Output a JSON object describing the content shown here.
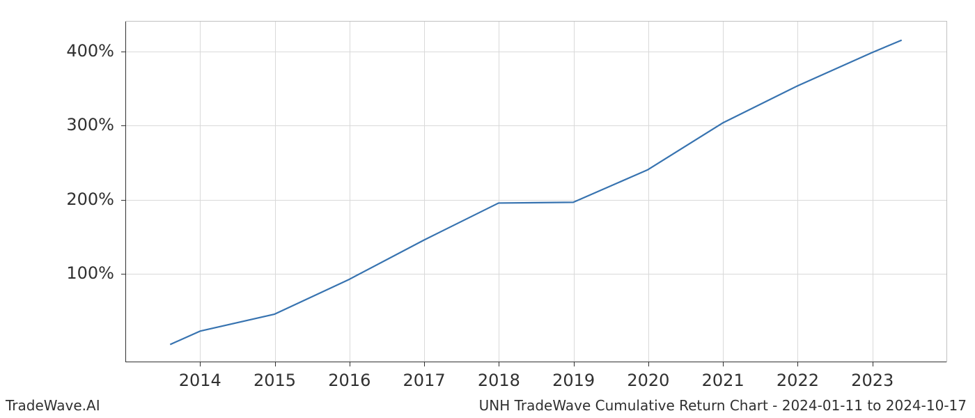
{
  "footer": {
    "left": "TradeWave.AI",
    "right": "UNH TradeWave Cumulative Return Chart - 2024-01-11 to 2024-10-17"
  },
  "chart": {
    "type": "line",
    "background_color": "#ffffff",
    "grid_color": "#d9d9d9",
    "axis_color": "#303030",
    "border_color": "#c0c0c0",
    "line_color": "#3773b0",
    "line_width": 2.2,
    "tick_fontsize": 24,
    "tick_color": "#303030",
    "footer_fontsize": 20,
    "x": {
      "values": [
        2013.6,
        2014,
        2015,
        2016,
        2017,
        2018,
        2019,
        2020,
        2021,
        2022,
        2023,
        2023.4
      ],
      "ticks": [
        2014,
        2015,
        2016,
        2017,
        2018,
        2019,
        2020,
        2021,
        2022,
        2023
      ],
      "tick_labels": [
        "2014",
        "2015",
        "2016",
        "2017",
        "2018",
        "2019",
        "2020",
        "2021",
        "2022",
        "2023"
      ],
      "lim": [
        2013.0,
        2024.0
      ]
    },
    "y": {
      "values": [
        4,
        22,
        45,
        92,
        145,
        195,
        196,
        240,
        303,
        353,
        398,
        415
      ],
      "ticks": [
        100,
        200,
        300,
        400
      ],
      "tick_labels": [
        "100%",
        "200%",
        "300%",
        "400%"
      ],
      "lim": [
        -20,
        440
      ]
    }
  }
}
